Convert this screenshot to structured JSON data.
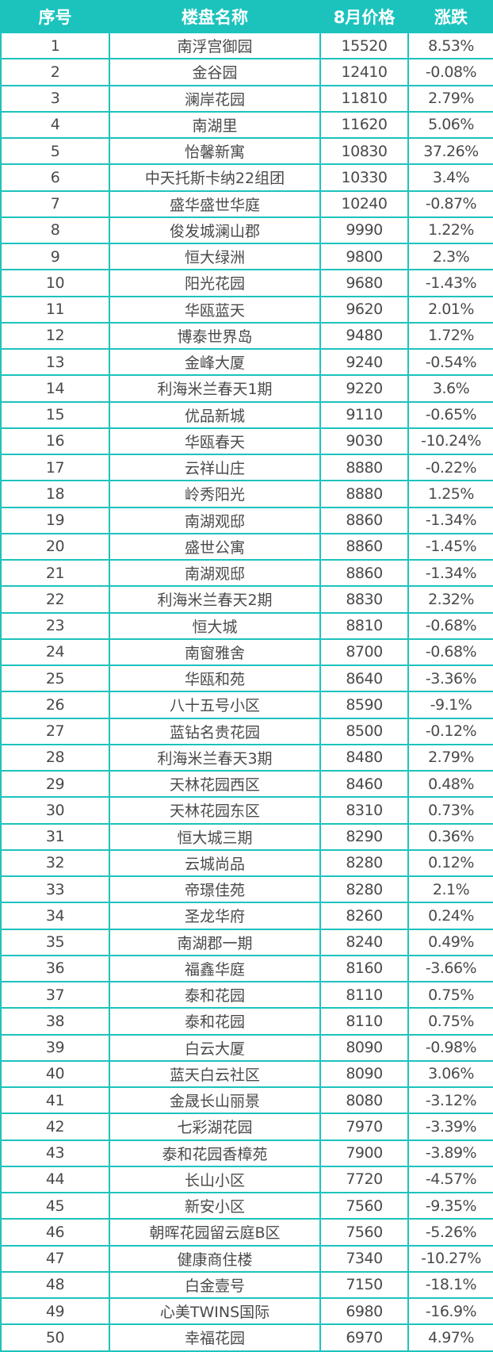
{
  "colors": {
    "header_bg": "#1cc3bd",
    "border": "#1cc3bd",
    "text": "#4a4a4a"
  },
  "table": {
    "headers": [
      "序号",
      "楼盘名称",
      "8月价格",
      "涨跌"
    ],
    "rows": [
      [
        "1",
        "南浮宫御园",
        "15520",
        "8.53%"
      ],
      [
        "2",
        "金谷园",
        "12410",
        "-0.08%"
      ],
      [
        "3",
        "澜岸花园",
        "11810",
        "2.79%"
      ],
      [
        "4",
        "南湖里",
        "11620",
        "5.06%"
      ],
      [
        "5",
        "怡馨新寓",
        "10830",
        "37.26%"
      ],
      [
        "6",
        "中天托斯卡纳22组团",
        "10330",
        "3.4%"
      ],
      [
        "7",
        "盛华盛世华庭",
        "10240",
        "-0.87%"
      ],
      [
        "8",
        "俊发城澜山郡",
        "9990",
        "1.22%"
      ],
      [
        "9",
        "恒大绿洲",
        "9800",
        "2.3%"
      ],
      [
        "10",
        "阳光花园",
        "9680",
        "-1.43%"
      ],
      [
        "11",
        "华瓯蓝天",
        "9620",
        "2.01%"
      ],
      [
        "12",
        "博泰世界岛",
        "9480",
        "1.72%"
      ],
      [
        "13",
        "金峰大厦",
        "9240",
        "-0.54%"
      ],
      [
        "14",
        "利海米兰春天1期",
        "9220",
        "3.6%"
      ],
      [
        "15",
        "优品新城",
        "9110",
        "-0.65%"
      ],
      [
        "16",
        "华瓯春天",
        "9030",
        "-10.24%"
      ],
      [
        "17",
        "云祥山庄",
        "8880",
        "-0.22%"
      ],
      [
        "18",
        "岭秀阳光",
        "8880",
        "1.25%"
      ],
      [
        "19",
        "南湖观邸",
        "8860",
        "-1.34%"
      ],
      [
        "20",
        "盛世公寓",
        "8860",
        "-1.45%"
      ],
      [
        "21",
        "南湖观邸",
        "8860",
        "-1.34%"
      ],
      [
        "22",
        "利海米兰春天2期",
        "8830",
        "2.32%"
      ],
      [
        "23",
        "恒大城",
        "8810",
        "-0.68%"
      ],
      [
        "24",
        "南窗雅舍",
        "8700",
        "-0.68%"
      ],
      [
        "25",
        "华瓯和苑",
        "8640",
        "-3.36%"
      ],
      [
        "26",
        "八十五号小区",
        "8590",
        "-9.1%"
      ],
      [
        "27",
        "蓝钻名贵花园",
        "8500",
        "-0.12%"
      ],
      [
        "28",
        "利海米兰春天3期",
        "8480",
        "2.79%"
      ],
      [
        "29",
        "天林花园西区",
        "8460",
        "0.48%"
      ],
      [
        "30",
        "天林花园东区",
        "8310",
        "0.73%"
      ],
      [
        "31",
        "恒大城三期",
        "8290",
        "0.36%"
      ],
      [
        "32",
        "云城尚品",
        "8280",
        "0.12%"
      ],
      [
        "33",
        "帝璟佳苑",
        "8280",
        "2.1%"
      ],
      [
        "34",
        "圣龙华府",
        "8260",
        "0.24%"
      ],
      [
        "35",
        "南湖郡一期",
        "8240",
        "0.49%"
      ],
      [
        "36",
        "福鑫华庭",
        "8160",
        "-3.66%"
      ],
      [
        "37",
        "泰和花园",
        "8110",
        "0.75%"
      ],
      [
        "38",
        "泰和花园",
        "8110",
        "0.75%"
      ],
      [
        "39",
        "白云大厦",
        "8090",
        "-0.98%"
      ],
      [
        "40",
        "蓝天白云社区",
        "8090",
        "3.06%"
      ],
      [
        "41",
        "金晟长山丽景",
        "8080",
        "-3.12%"
      ],
      [
        "42",
        "七彩湖花园",
        "7970",
        "-3.39%"
      ],
      [
        "43",
        "泰和花园香樟苑",
        "7900",
        "-3.89%"
      ],
      [
        "44",
        "长山小区",
        "7720",
        "-4.57%"
      ],
      [
        "45",
        "新安小区",
        "7560",
        "-9.35%"
      ],
      [
        "46",
        "朝晖花园留云庭B区",
        "7560",
        "-5.26%"
      ],
      [
        "47",
        "健康商住楼",
        "7340",
        "-10.27%"
      ],
      [
        "48",
        "白金壹号",
        "7150",
        "-18.1%"
      ],
      [
        "49",
        "心美TWINS国际",
        "6980",
        "-16.9%"
      ],
      [
        "50",
        "幸福花园",
        "6970",
        "4.97%"
      ]
    ]
  }
}
